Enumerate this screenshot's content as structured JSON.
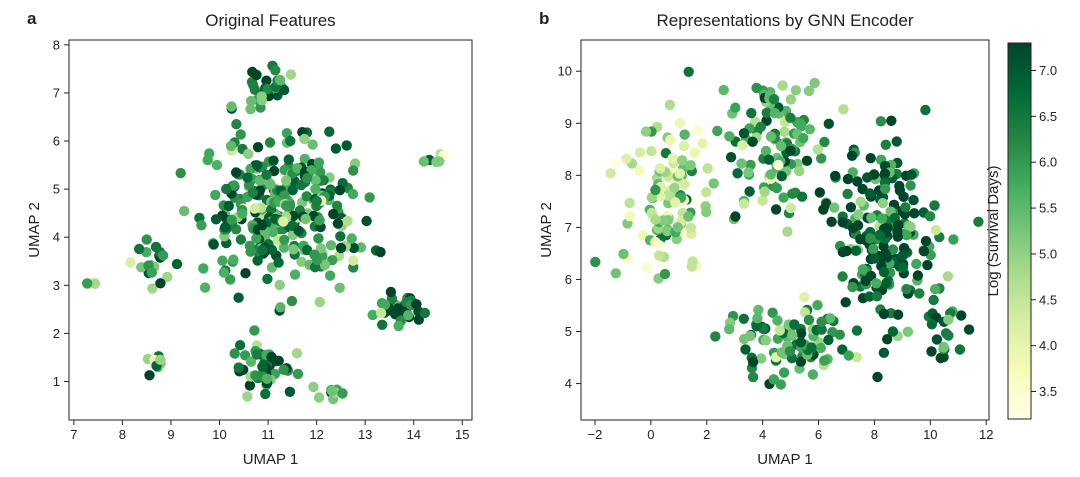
{
  "chart_data": [
    {
      "type": "scatter",
      "panel_letter": "a",
      "title": "Original Features",
      "xlabel": "UMAP 1",
      "ylabel": "UMAP 2",
      "xlim": [
        6.9,
        15.2
      ],
      "ylim": [
        0.2,
        8.1
      ],
      "xticks": [
        7,
        8,
        9,
        10,
        11,
        12,
        13,
        14,
        15
      ],
      "yticks": [
        1,
        2,
        3,
        4,
        5,
        6,
        7,
        8
      ],
      "grid": false,
      "clusters": [
        {
          "region": "main-blob",
          "center": [
            11.2,
            4.6
          ],
          "spread": [
            1.3,
            1.3
          ],
          "count": 300,
          "mean_color": 6.1
        },
        {
          "region": "top-cap",
          "center": [
            11.0,
            7.1
          ],
          "spread": [
            0.5,
            0.3
          ],
          "count": 30,
          "mean_color": 6.2
        },
        {
          "region": "left-lobe",
          "center": [
            8.6,
            3.4
          ],
          "spread": [
            0.35,
            0.35
          ],
          "count": 20,
          "mean_color": 6.0
        },
        {
          "region": "far-left",
          "center": [
            7.45,
            3.05
          ],
          "spread": [
            0.2,
            0.1
          ],
          "count": 5,
          "mean_color": 5.0
        },
        {
          "region": "left-bottom",
          "center": [
            8.7,
            1.4
          ],
          "spread": [
            0.2,
            0.15
          ],
          "count": 8,
          "mean_color": 6.3
        },
        {
          "region": "bottom-center",
          "center": [
            10.9,
            1.3
          ],
          "spread": [
            0.55,
            0.4
          ],
          "count": 45,
          "mean_color": 6.3
        },
        {
          "region": "bottom-right",
          "center": [
            12.2,
            0.75
          ],
          "spread": [
            0.3,
            0.08
          ],
          "count": 10,
          "mean_color": 5.3
        },
        {
          "region": "right-cluster",
          "center": [
            13.6,
            2.5
          ],
          "spread": [
            0.4,
            0.3
          ],
          "count": 35,
          "mean_color": 6.6
        },
        {
          "region": "far-right",
          "center": [
            14.4,
            5.6
          ],
          "spread": [
            0.25,
            0.12
          ],
          "count": 8,
          "mean_color": 5.0
        }
      ]
    },
    {
      "type": "scatter",
      "panel_letter": "b",
      "title": "Representations by GNN Encoder",
      "xlabel": "UMAP 1",
      "ylabel": "UMAP 2",
      "xlim": [
        -2.5,
        12.1
      ],
      "ylim": [
        3.3,
        10.6
      ],
      "xticks": [
        -2,
        0,
        2,
        4,
        6,
        8,
        10,
        12
      ],
      "yticks": [
        4,
        5,
        6,
        7,
        8,
        9,
        10
      ],
      "grid": false,
      "clusters": [
        {
          "region": "left-light",
          "center": [
            0.6,
            7.6
          ],
          "spread": [
            1.3,
            1.4
          ],
          "count": 110,
          "mean_color": 4.8
        },
        {
          "region": "upper-middle",
          "center": [
            4.6,
            8.6
          ],
          "spread": [
            1.6,
            1.1
          ],
          "count": 120,
          "mean_color": 5.8
        },
        {
          "region": "right-dark",
          "center": [
            8.3,
            6.8
          ],
          "spread": [
            1.6,
            1.5
          ],
          "count": 200,
          "mean_color": 6.7
        },
        {
          "region": "lower-middle",
          "center": [
            4.8,
            4.8
          ],
          "spread": [
            1.8,
            0.6
          ],
          "count": 90,
          "mean_color": 6.0
        },
        {
          "region": "far-right-lower",
          "center": [
            10.6,
            5.2
          ],
          "spread": [
            0.6,
            0.6
          ],
          "count": 20,
          "mean_color": 6.3
        }
      ]
    }
  ],
  "colorbar": {
    "label": "Log (Survival Days)",
    "range": [
      3.2,
      7.3
    ],
    "ticks": [
      "3.5",
      "4.0",
      "4.5",
      "5.0",
      "5.5",
      "6.0",
      "6.5",
      "7.0"
    ],
    "colormap": "YlGn",
    "colors": [
      "#ffffe5",
      "#f7fcb9",
      "#d9f0a3",
      "#addd8e",
      "#78c679",
      "#41ab5d",
      "#238443",
      "#006837",
      "#004529"
    ]
  }
}
